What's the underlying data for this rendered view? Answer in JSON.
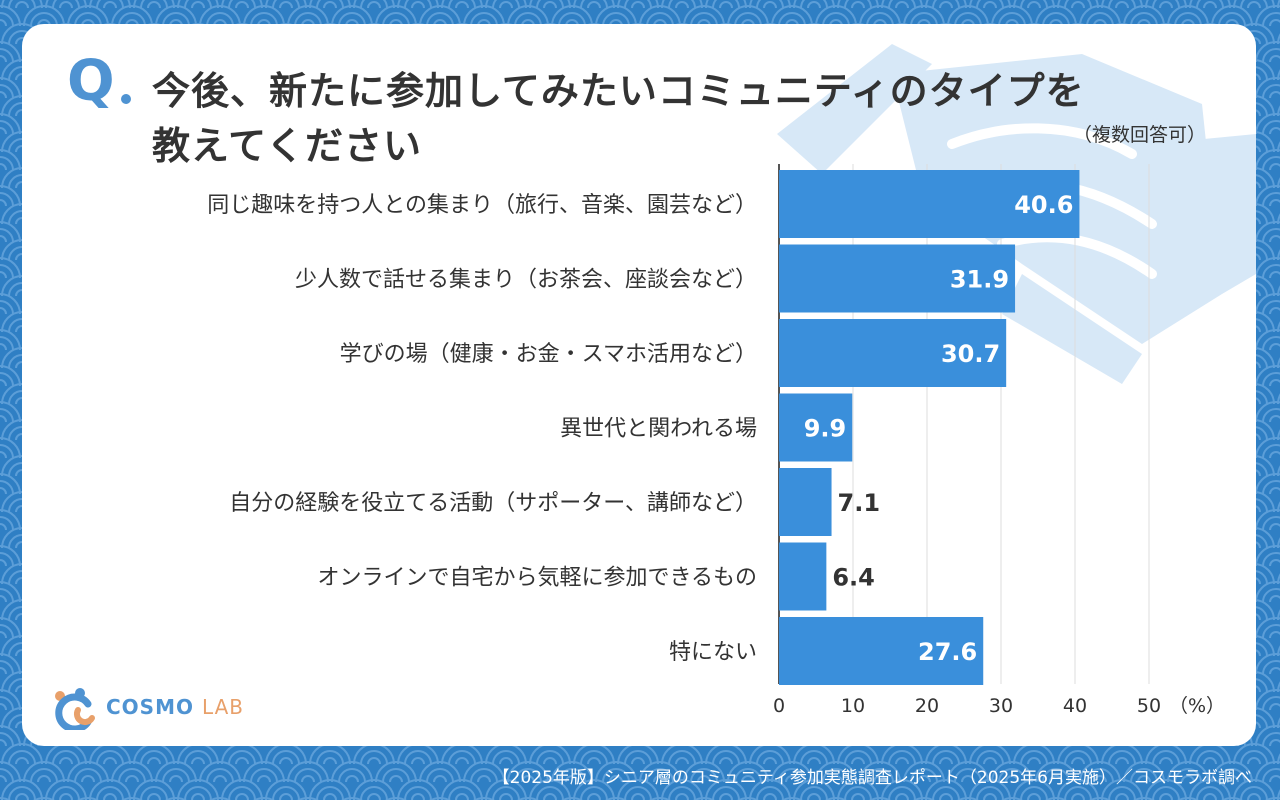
{
  "title": {
    "mark": "Q",
    "line1": "今後、新たに参加してみたいコミュニティのタイプを",
    "line2": "教えてください",
    "note": "（複数回答可）"
  },
  "colors": {
    "background": "#2f7fc4",
    "card": "#ffffff",
    "accent": "#4f93d2",
    "bar": "#3a8fdb",
    "handshake": "#d7e8f7",
    "text": "#333333"
  },
  "logo": {
    "icon": "cosmo-lab-logo-icon",
    "text_main": "COSMO",
    "text_sub": "LAB"
  },
  "footer": "【2025年版】シニア層のコミュニティ参加実態調査レポート（2025年6月実施）／コスモラボ調べ",
  "chart_data": {
    "type": "bar",
    "orientation": "horizontal",
    "categories": [
      "同じ趣味を持つ人との集まり（旅行、音楽、園芸など）",
      "少人数で話せる集まり（お茶会、座談会など）",
      "学びの場（健康・お金・スマホ活用など）",
      "異世代と関われる場",
      "自分の経験を役立てる活動（サポーター、講師など）",
      "オンラインで自宅から気軽に参加できるもの",
      "特にない"
    ],
    "values": [
      40.6,
      31.9,
      30.7,
      9.9,
      7.1,
      6.4,
      27.6
    ],
    "value_labels": [
      "40.6",
      "31.9",
      "30.7",
      "9.9",
      "7.1",
      "6.4",
      "27.6"
    ],
    "xlim": [
      0,
      55
    ],
    "xticks": [
      0,
      10,
      20,
      30,
      40,
      50
    ],
    "xticklabels": [
      "0",
      "10",
      "20",
      "30",
      "40",
      "50"
    ],
    "unit_label": "（%）",
    "grid": true
  }
}
